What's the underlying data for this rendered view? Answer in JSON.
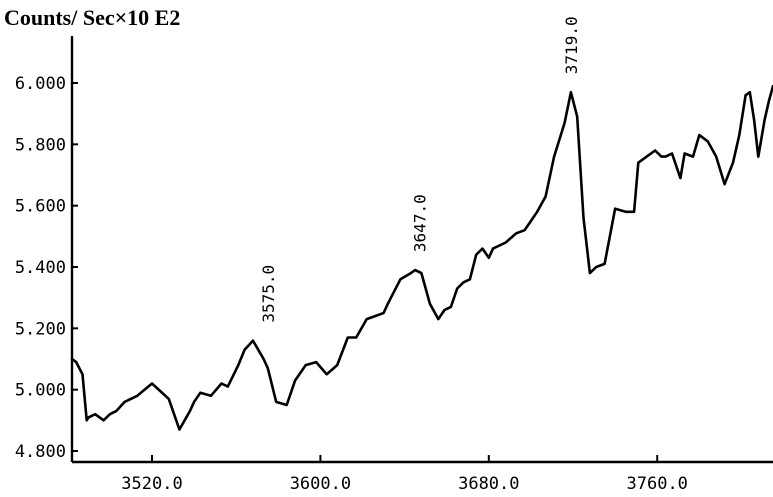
{
  "chart_data": {
    "type": "line",
    "title": "",
    "ylabel": "Counts/ Sec×10 E2",
    "xlabel": "",
    "xlim": [
      3482,
      3815
    ],
    "ylim": [
      4.8,
      6.0
    ],
    "xticks": [
      3520,
      3600,
      3680,
      3760
    ],
    "xtick_labels": [
      "3520.0",
      "3600.0",
      "3680.0",
      "3760.0"
    ],
    "yticks": [
      4.8,
      5.0,
      5.2,
      5.4,
      5.6,
      5.8,
      6.0
    ],
    "ytick_labels": [
      "4.800",
      "5.000",
      "5.200",
      "5.400",
      "5.600",
      "5.800",
      "6.000"
    ],
    "grid": false,
    "annotations": [
      {
        "x": 3575,
        "y": 5.16,
        "label": "3575.0"
      },
      {
        "x": 3647,
        "y": 5.39,
        "label": "3647.0"
      },
      {
        "x": 3719,
        "y": 5.97,
        "label": "3719.0"
      }
    ],
    "series": [
      {
        "x": [
          3482,
          3484,
          3487,
          3489,
          3490,
          3493,
          3497,
          3500,
          3503,
          3507,
          3513,
          3520,
          3528,
          3533,
          3538,
          3540,
          3543,
          3548,
          3553,
          3556,
          3561,
          3564,
          3568,
          3573,
          3575,
          3579,
          3584,
          3588,
          3593,
          3598,
          3603,
          3608,
          3613,
          3617,
          3622,
          3626,
          3630,
          3632,
          3638,
          3643,
          3645,
          3648,
          3652,
          3656,
          3659,
          3662,
          3665,
          3668,
          3671,
          3674,
          3677,
          3680,
          3682,
          3688,
          3693,
          3697,
          3700,
          3703,
          3707,
          3711,
          3716,
          3719,
          3722,
          3725,
          3728,
          3731,
          3735,
          3740,
          3745,
          3749,
          3751,
          3755,
          3759,
          3762,
          3764,
          3767,
          3771,
          3773,
          3777,
          3780,
          3784,
          3788,
          3792,
          3796,
          3799,
          3802,
          3804,
          3806,
          3808,
          3811,
          3813,
          3815
        ],
        "y": [
          5.1,
          5.09,
          5.05,
          4.9,
          4.91,
          4.92,
          4.9,
          4.92,
          4.93,
          4.96,
          4.98,
          5.02,
          4.97,
          4.87,
          4.93,
          4.96,
          4.99,
          4.98,
          5.02,
          5.01,
          5.08,
          5.13,
          5.16,
          5.1,
          5.07,
          4.96,
          4.95,
          5.03,
          5.08,
          5.09,
          5.05,
          5.08,
          5.17,
          5.17,
          5.23,
          5.24,
          5.25,
          5.28,
          5.36,
          5.38,
          5.39,
          5.38,
          5.28,
          5.23,
          5.26,
          5.27,
          5.33,
          5.35,
          5.36,
          5.44,
          5.46,
          5.43,
          5.46,
          5.48,
          5.51,
          5.52,
          5.55,
          5.58,
          5.63,
          5.76,
          5.87,
          5.97,
          5.89,
          5.56,
          5.38,
          5.4,
          5.41,
          5.59,
          5.58,
          5.58,
          5.74,
          5.76,
          5.78,
          5.76,
          5.76,
          5.77,
          5.69,
          5.77,
          5.76,
          5.83,
          5.81,
          5.76,
          5.67,
          5.74,
          5.83,
          5.96,
          5.97,
          5.88,
          5.76,
          5.88,
          5.94,
          5.99
        ]
      }
    ]
  }
}
